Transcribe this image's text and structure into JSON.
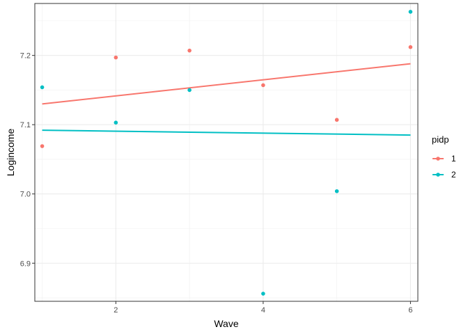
{
  "chart_data": {
    "type": "scatter",
    "xlabel": "Wave",
    "ylabel": "Logincome",
    "xlim": [
      0.9,
      6.1
    ],
    "ylim": [
      6.845,
      7.275
    ],
    "x_ticks": [
      2,
      4,
      6
    ],
    "y_ticks": [
      6.9,
      7.0,
      7.1,
      7.2
    ],
    "x_tick_labels": [
      "2",
      "4",
      "6"
    ],
    "y_tick_labels": [
      "6.9",
      "7.0",
      "7.1",
      "7.2"
    ],
    "grid": true,
    "legend": {
      "title": "pidp",
      "position": "right",
      "entries": [
        {
          "label": "1",
          "color": "#F8766D"
        },
        {
          "label": "2",
          "color": "#00BFC4"
        }
      ]
    },
    "series": [
      {
        "name": "1",
        "color": "#F8766D",
        "points": [
          {
            "x": 1,
            "y": 7.069
          },
          {
            "x": 2,
            "y": 7.197
          },
          {
            "x": 3,
            "y": 7.207
          },
          {
            "x": 4,
            "y": 7.157
          },
          {
            "x": 5,
            "y": 7.107
          },
          {
            "x": 6,
            "y": 7.212
          }
        ],
        "fit": {
          "x": [
            1,
            6
          ],
          "y": [
            7.13,
            7.188
          ]
        }
      },
      {
        "name": "2",
        "color": "#00BFC4",
        "points": [
          {
            "x": 1,
            "y": 7.154
          },
          {
            "x": 2,
            "y": 7.103
          },
          {
            "x": 3,
            "y": 7.15
          },
          {
            "x": 4,
            "y": 6.856
          },
          {
            "x": 5,
            "y": 7.004
          },
          {
            "x": 6,
            "y": 7.263
          }
        ],
        "fit": {
          "x": [
            1,
            6
          ],
          "y": [
            7.092,
            7.085
          ]
        }
      }
    ]
  }
}
